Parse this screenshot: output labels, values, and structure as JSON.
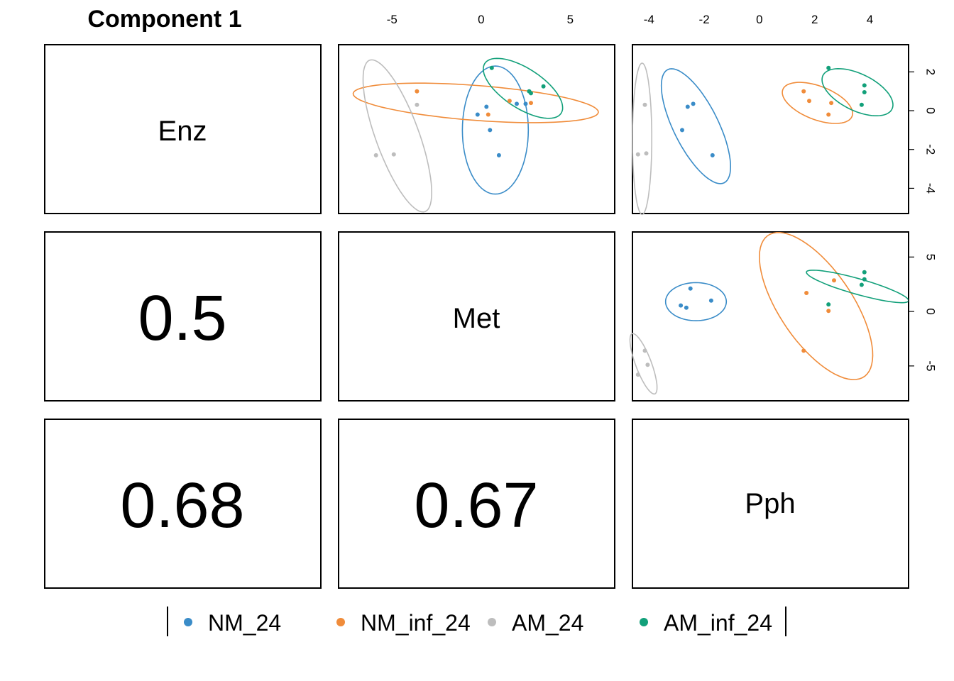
{
  "title": "Component 1",
  "legend": [
    {
      "label": "NM_24",
      "color": "#3a8cc8"
    },
    {
      "label": "NM_inf_24",
      "color": "#f08c3a"
    },
    {
      "label": "AM_24",
      "color": "#bdbdbd"
    },
    {
      "label": "AM_inf_24",
      "color": "#12a07a"
    }
  ],
  "chart_data": [
    {
      "type": "table",
      "variables": [
        "Enz",
        "Met",
        "Pph"
      ],
      "correlations": [
        {
          "row": "Met",
          "col": "Enz",
          "value": "0.5"
        },
        {
          "row": "Pph",
          "col": "Enz",
          "value": "0.68"
        },
        {
          "row": "Pph",
          "col": "Met",
          "value": "0.67"
        }
      ]
    },
    {
      "type": "scatter",
      "panel": "Met vs Enz",
      "xlabel": "",
      "ylabel": "",
      "xlim": [
        -8,
        7.5
      ],
      "ylim": [
        -5.3,
        3.4
      ],
      "xticks": [
        -5,
        0,
        5
      ],
      "yticks": [],
      "series": [
        {
          "name": "NM_24",
          "points": [
            [
              0.3,
              0.2
            ],
            [
              -0.2,
              -0.2
            ],
            [
              0.5,
              -1.0
            ],
            [
              1.0,
              -2.3
            ],
            [
              2.0,
              0.35
            ],
            [
              2.5,
              0.35
            ]
          ]
        },
        {
          "name": "NM_inf_24",
          "points": [
            [
              -3.6,
              1.0
            ],
            [
              0.4,
              -0.2
            ],
            [
              1.6,
              0.5
            ],
            [
              2.8,
              0.4
            ]
          ]
        },
        {
          "name": "AM_24",
          "points": [
            [
              -3.6,
              0.3
            ],
            [
              -5.9,
              -2.3
            ],
            [
              -4.9,
              -2.25
            ]
          ]
        },
        {
          "name": "AM_inf_24",
          "points": [
            [
              0.6,
              2.2
            ],
            [
              2.7,
              1.0
            ],
            [
              2.8,
              0.9
            ],
            [
              3.5,
              1.25
            ]
          ]
        }
      ],
      "ellipses": [
        {
          "series": "NM_24",
          "cx": 0.8,
          "cy": -1.0,
          "rx": 1.85,
          "ry": 3.3,
          "angle_deg": 0
        },
        {
          "series": "NM_inf_24",
          "cx": -0.3,
          "cy": 0.4,
          "rx": 6.9,
          "ry": 0.9,
          "angle_deg": -4
        },
        {
          "series": "AM_24",
          "cx": -4.7,
          "cy": -1.3,
          "rx": 1.2,
          "ry": 4.2,
          "angle_deg": 22
        },
        {
          "series": "AM_inf_24",
          "cx": 2.35,
          "cy": 1.15,
          "rx": 2.5,
          "ry": 1.05,
          "angle_deg": -30
        }
      ]
    },
    {
      "type": "scatter",
      "panel": "Pph vs Enz",
      "xlabel": "",
      "ylabel": "",
      "xlim": [
        -4.6,
        5.4
      ],
      "ylim": [
        -5.3,
        3.4
      ],
      "xticks": [
        -4,
        -2,
        0,
        2,
        4
      ],
      "yticks": [
        -4,
        -2,
        0,
        2
      ],
      "series": [
        {
          "name": "NM_24",
          "points": [
            [
              -2.6,
              0.2
            ],
            [
              -2.4,
              0.35
            ],
            [
              -2.8,
              -1.0
            ],
            [
              -1.7,
              -2.3
            ]
          ]
        },
        {
          "name": "NM_inf_24",
          "points": [
            [
              1.6,
              1.0
            ],
            [
              1.8,
              0.5
            ],
            [
              2.6,
              0.4
            ],
            [
              2.5,
              -0.2
            ]
          ]
        },
        {
          "name": "AM_24",
          "points": [
            [
              -4.15,
              0.3
            ],
            [
              -4.4,
              -2.25
            ],
            [
              -4.1,
              -2.2
            ]
          ]
        },
        {
          "name": "AM_inf_24",
          "points": [
            [
              2.5,
              2.2
            ],
            [
              3.8,
              1.3
            ],
            [
              3.8,
              0.95
            ],
            [
              3.7,
              0.3
            ]
          ]
        }
      ],
      "ellipses": [
        {
          "series": "NM_24",
          "cx": -2.3,
          "cy": -0.8,
          "rx": 0.85,
          "ry": 3.1,
          "angle_deg": 18
        },
        {
          "series": "NM_inf_24",
          "cx": 2.1,
          "cy": 0.4,
          "rx": 1.45,
          "ry": 0.8,
          "angle_deg": -35
        },
        {
          "series": "AM_24",
          "cx": -4.25,
          "cy": -1.45,
          "rx": 0.35,
          "ry": 3.9,
          "angle_deg": 0
        },
        {
          "series": "AM_inf_24",
          "cx": 3.55,
          "cy": 0.95,
          "rx": 1.55,
          "ry": 0.85,
          "angle_deg": -42
        }
      ]
    },
    {
      "type": "scatter",
      "panel": "Pph vs Met",
      "xlabel": "",
      "ylabel": "",
      "xlim": [
        -4.6,
        5.4
      ],
      "ylim": [
        -8.2,
        7.3
      ],
      "xticks": [],
      "yticks": [
        -5,
        0,
        5
      ],
      "series": [
        {
          "name": "NM_24",
          "points": [
            [
              -2.5,
              2.1
            ],
            [
              -2.85,
              0.55
            ],
            [
              -2.65,
              0.35
            ],
            [
              -1.75,
              1.0
            ]
          ]
        },
        {
          "name": "NM_inf_24",
          "points": [
            [
              1.7,
              1.7
            ],
            [
              2.7,
              2.85
            ],
            [
              2.5,
              0.05
            ],
            [
              1.6,
              -3.6
            ]
          ]
        },
        {
          "name": "AM_24",
          "points": [
            [
              -4.15,
              -3.6
            ],
            [
              -4.05,
              -4.9
            ],
            [
              -4.4,
              -5.8
            ]
          ]
        },
        {
          "name": "AM_inf_24",
          "points": [
            [
              2.5,
              0.65
            ],
            [
              3.8,
              3.6
            ],
            [
              3.8,
              2.95
            ],
            [
              3.7,
              2.45
            ]
          ]
        }
      ],
      "ellipses": [
        {
          "series": "NM_24",
          "cx": -2.3,
          "cy": 0.9,
          "rx": 1.1,
          "ry": 1.75,
          "angle_deg": 0
        },
        {
          "series": "NM_inf_24",
          "cx": 2.05,
          "cy": 0.5,
          "rx": 1.5,
          "ry": 6.9,
          "angle_deg": 12
        },
        {
          "series": "AM_24",
          "cx": -4.2,
          "cy": -4.8,
          "rx": 0.3,
          "ry": 2.8,
          "angle_deg": 8
        },
        {
          "series": "AM_inf_24",
          "cx": 3.55,
          "cy": 2.3,
          "rx": 2.3,
          "ry": 0.6,
          "angle_deg": -38
        }
      ]
    }
  ]
}
